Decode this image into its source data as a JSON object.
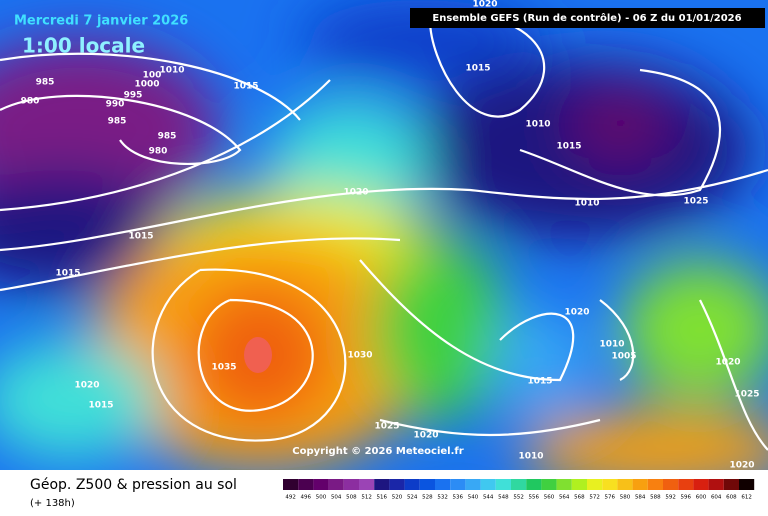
{
  "header": {
    "title": "Mercredi 7 janvier 2026",
    "time": "1:00 locale",
    "run": "Ensemble GEFS  (Run de contrôle)  -  06 Z du 01/01/2026"
  },
  "isobars": [
    "1020",
    "1010",
    "100",
    "1000",
    "985",
    "980",
    "995",
    "990",
    "985",
    "1015",
    "1015",
    "985",
    "980",
    "1010",
    "1015",
    "1010",
    "1025",
    "1020",
    "1015",
    "1015",
    "1020",
    "1010",
    "1005",
    "1035",
    "1030",
    "1015",
    "1020",
    "1015",
    "1025",
    "1020",
    "1010",
    "1020",
    "1025",
    "1020"
  ],
  "copyright": "Copyright © 2026 Meteociel.fr",
  "footer": {
    "title": "Géop. Z500 & pression au sol",
    "lead": "(+ 138h)"
  },
  "colorbar": {
    "labels": [
      "492",
      "496",
      "500",
      "504",
      "508",
      "512",
      "516",
      "520",
      "524",
      "528",
      "532",
      "536",
      "540",
      "544",
      "548",
      "552",
      "556",
      "560",
      "564",
      "568",
      "572",
      "576",
      "580",
      "584",
      "588",
      "592",
      "596",
      "600",
      "604",
      "608",
      "612"
    ],
    "colors": [
      "#300030",
      "#4b0050",
      "#63006b",
      "#7a1a85",
      "#8c2ea0",
      "#9b44b5",
      "#1d1580",
      "#1a26a8",
      "#0d3cc8",
      "#0a55e0",
      "#1a72f0",
      "#2c8cf5",
      "#38a8f5",
      "#40c8f0",
      "#40e0d8",
      "#30d8a0",
      "#20c860",
      "#40d040",
      "#80e030",
      "#b0f020",
      "#e8f020",
      "#f8e020",
      "#f8c018",
      "#f8a010",
      "#f88010",
      "#f06010",
      "#e84010",
      "#d82010",
      "#b01010",
      "#700808",
      "#100000"
    ]
  }
}
